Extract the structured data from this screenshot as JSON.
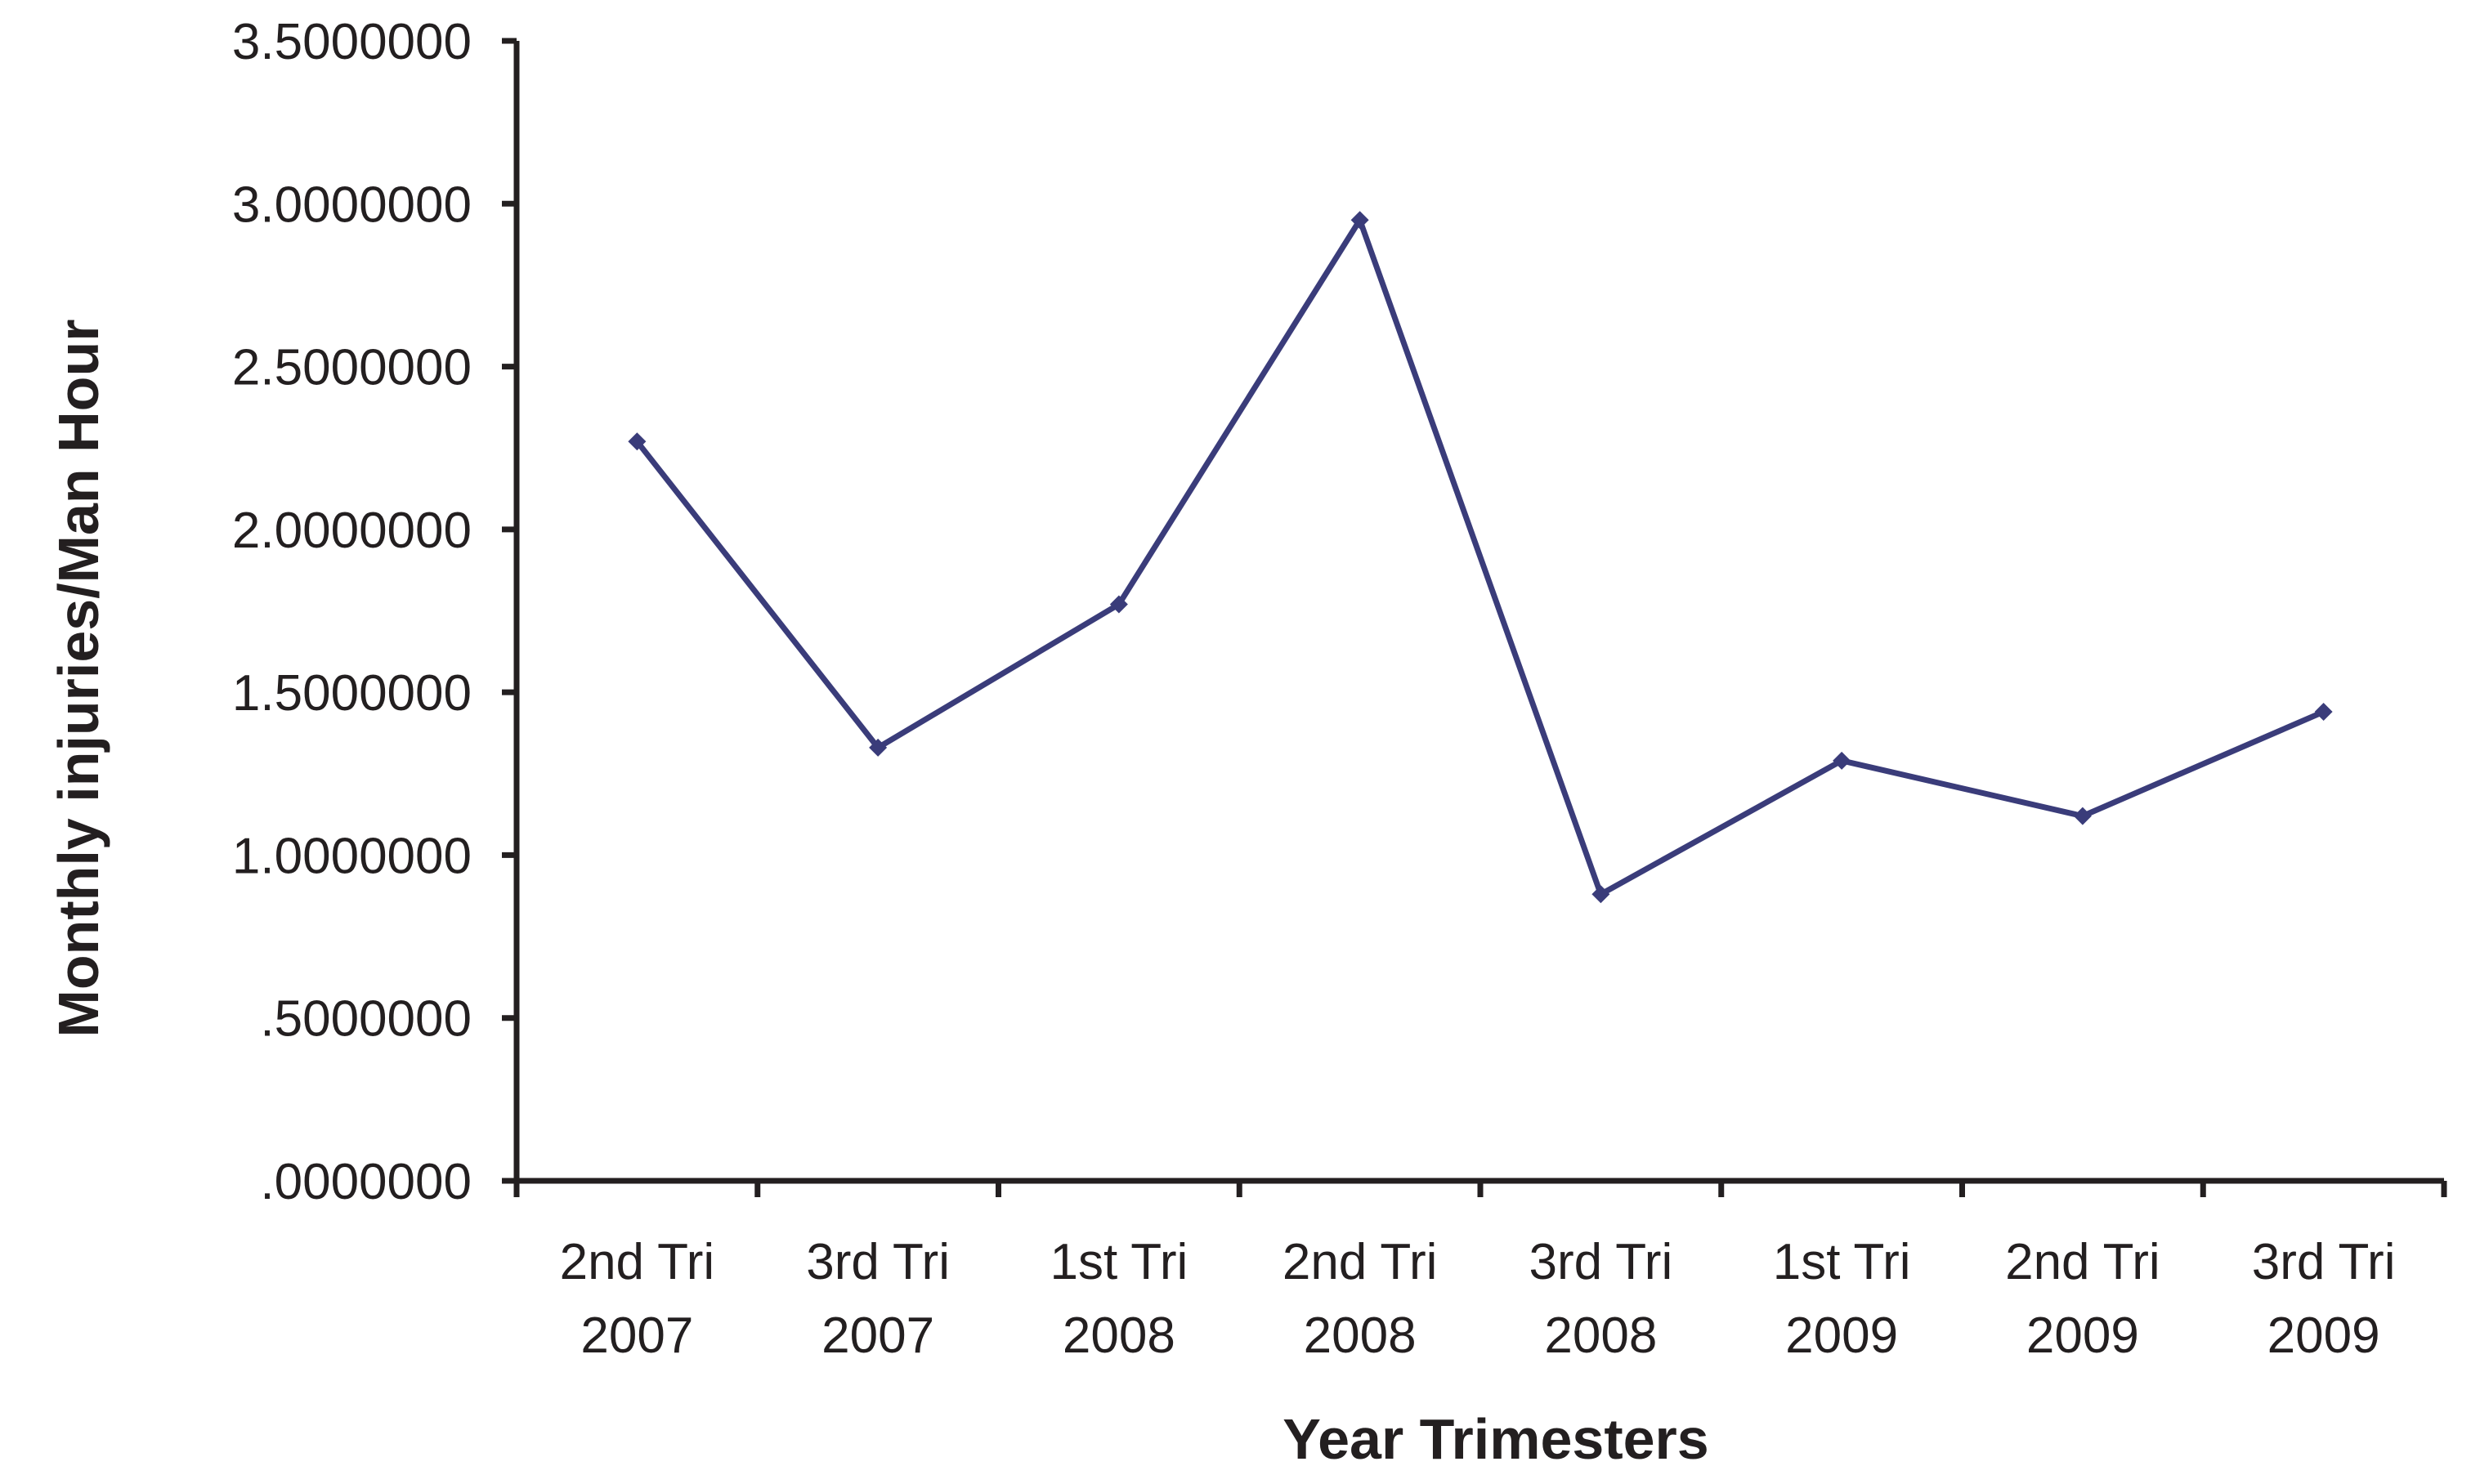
{
  "chart_data": {
    "type": "line",
    "title": "",
    "xlabel": "Year Trimesters",
    "ylabel": "Monthly injuries/Man Hour",
    "categories": [
      [
        "2nd Tri",
        "2007"
      ],
      [
        "3rd Tri",
        "2007"
      ],
      [
        "1st Tri",
        "2008"
      ],
      [
        "2nd Tri",
        "2008"
      ],
      [
        "3rd Tri",
        "2008"
      ],
      [
        "1st Tri",
        "2009"
      ],
      [
        "2nd Tri",
        "2009"
      ],
      [
        "3rd Tri",
        "2009"
      ]
    ],
    "series": [
      {
        "values": [
          2.27,
          1.33,
          1.77,
          2.95,
          0.88,
          1.29,
          1.12,
          1.44
        ],
        "color": "#3a3c7a"
      }
    ],
    "ylim": [
      0,
      3.5
    ],
    "yticks": [
      0,
      0.5,
      1.0,
      1.5,
      2.0,
      2.5,
      3.0,
      3.5
    ],
    "ytick_labels": [
      ".0000000",
      ".5000000",
      "1.0000000",
      "1.5000000",
      "2.0000000",
      "2.5000000",
      "3.0000000",
      "3.5000000"
    ],
    "grid": false,
    "legend": "none",
    "marker": "diamond",
    "axis_color": "#231f20"
  }
}
